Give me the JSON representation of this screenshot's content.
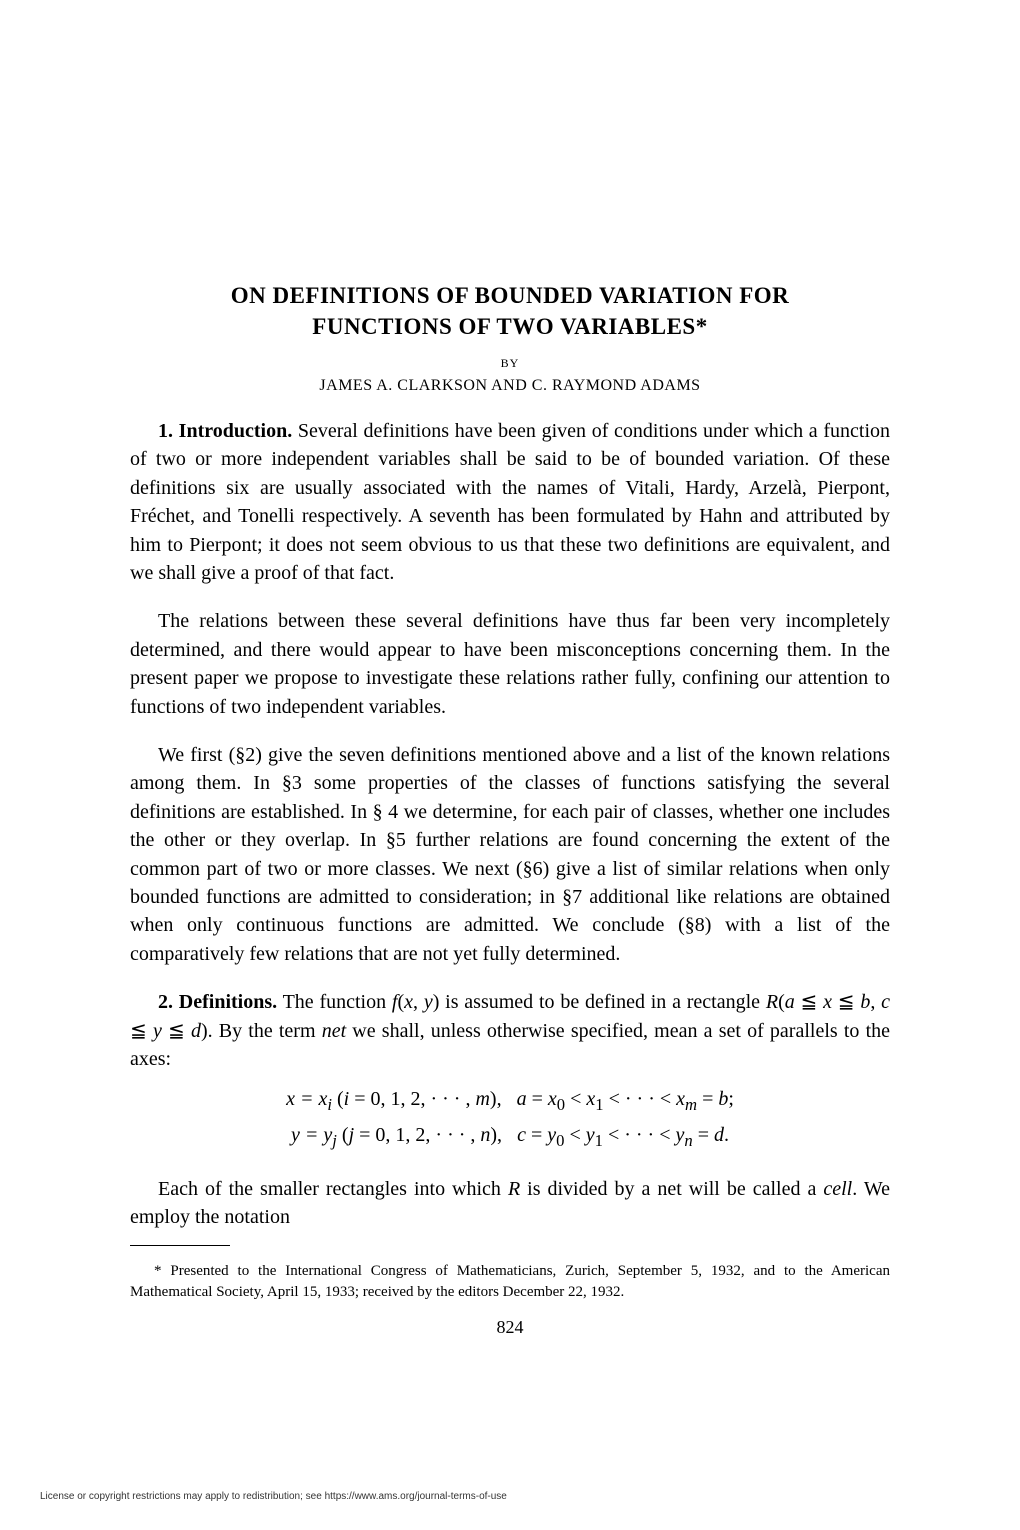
{
  "title_line1": "ON DEFINITIONS OF BOUNDED VARIATION FOR",
  "title_line2": "FUNCTIONS OF TWO VARIABLES*",
  "by_label": "BY",
  "authors": "JAMES A. CLARKSON AND C. RAYMOND ADAMS",
  "para1": "1. Introduction. Several definitions have been given of conditions under which a function of two or more independent variables shall be said to be of bounded variation. Of these definitions six are usually associated with the names of Vitali, Hardy, Arzelà, Pierpont, Fréchet, and Tonelli respectively. A seventh has been formulated by Hahn and attributed by him to Pierpont; it does not seem obvious to us that these two definitions are equivalent, and we shall give a proof of that fact.",
  "para2": "The relations between these several definitions have thus far been very incompletely determined, and there would appear to have been misconceptions concerning them. In the present paper we propose to investigate these relations rather fully, confining our attention to functions of two independent variables.",
  "para3": "We first (§2) give the seven definitions mentioned above and a list of the known relations among them. In §3 some properties of the classes of functions satisfying the several definitions are established. In § 4 we determine, for each pair of classes, whether one includes the other or they overlap. In §5 further relations are found concerning the extent of the common part of two or more classes. We next (§6) give a list of similar relations when only bounded functions are admitted to consideration; in §7 additional like relations are obtained when only continuous functions are admitted. We conclude (§8) with a list of the comparatively few relations that are not yet fully determined.",
  "para4_lead": "2. Definitions. ",
  "para4_body": "The function f(x, y) is assumed to be defined in a rectangle R(a ≦ x ≦ b, c ≦ y ≦ d). By the term net we shall, unless otherwise specified, mean a set of parallels to the axes:",
  "math_line1": "x = xᵢ (i = 0, 1, 2, · · · , m),   a = x₀ < x₁ < · · · < xₘ = b;",
  "math_line2": "y = yⱼ (j = 0, 1, 2, · · · , n),   c = y₀ < y₁ < · · · < yₙ = d.",
  "para5": "Each of the smaller rectangles into which R is divided by a net will be called a cell. We employ the notation",
  "footnote": "* Presented to the International Congress of Mathematicians, Zurich, September 5, 1932, and to the American Mathematical Society, April 15, 1933; received by the editors December 22, 1932.",
  "page_number": "824",
  "license_text": "License or copyright restrictions may apply to redistribution; see https://www.ams.org/journal-terms-of-use"
}
